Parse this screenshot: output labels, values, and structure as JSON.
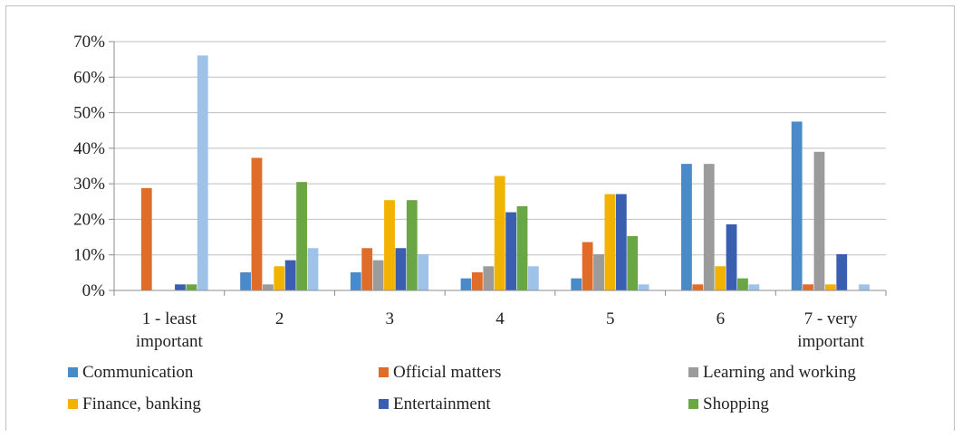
{
  "chart_data": {
    "type": "bar",
    "categories": [
      [
        "1 - least",
        "important"
      ],
      [
        "2"
      ],
      [
        "3"
      ],
      [
        "4"
      ],
      [
        "5"
      ],
      [
        "6"
      ],
      [
        "7 - very",
        "important"
      ]
    ],
    "y_ticks": [
      "0%",
      "10%",
      "20%",
      "30%",
      "40%",
      "50%",
      "60%",
      "70%"
    ],
    "ylim": [
      0,
      70
    ],
    "grid": true,
    "legend_position": "bottom",
    "series": [
      {
        "name": "Communication",
        "color": "#4a8ac9",
        "values": [
          0,
          5.1,
          5.1,
          3.4,
          3.4,
          35.6,
          47.5
        ]
      },
      {
        "name": "Official matters",
        "color": "#e06c2a",
        "values": [
          28.8,
          37.3,
          11.9,
          5.1,
          13.6,
          1.7,
          1.7
        ]
      },
      {
        "name": "Learning and working",
        "color": "#9b9b9b",
        "values": [
          0,
          1.7,
          8.5,
          6.8,
          10.2,
          35.6,
          39.0
        ]
      },
      {
        "name": "Finance, banking",
        "color": "#f2b200",
        "values": [
          0,
          6.8,
          25.4,
          32.2,
          27.1,
          6.8,
          1.7
        ]
      },
      {
        "name": "Entertainment",
        "color": "#3a5fb0",
        "values": [
          1.7,
          8.5,
          11.9,
          22.0,
          27.1,
          18.6,
          10.2
        ]
      },
      {
        "name": "Shopping",
        "color": "#6aa744",
        "values": [
          1.7,
          30.5,
          25.4,
          23.7,
          15.3,
          3.4,
          0
        ]
      },
      {
        "name": "",
        "color": "#9fc3e8",
        "values": [
          66.1,
          11.9,
          10.2,
          6.8,
          1.7,
          1.7,
          1.7
        ]
      }
    ],
    "grid_color": "#bfbfbf",
    "axis_color": "#8c8c8c"
  }
}
